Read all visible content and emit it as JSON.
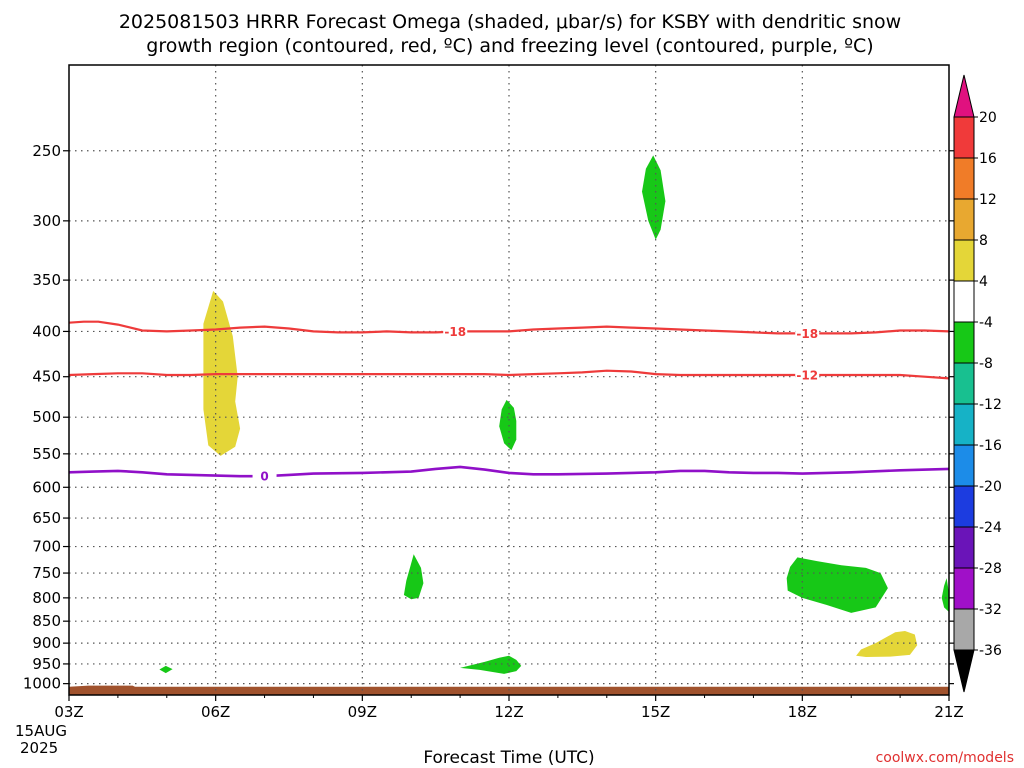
{
  "chart_data": {
    "type": "time-height cross-section",
    "title_lines": [
      "2025081503 HRRR Forecast Omega (shaded, μbar/s) for KSBY with dendritic snow",
      "growth region (contoured, red, ºC) and freezing level (contoured, purple, ºC)"
    ],
    "xlabel": "Forecast Time (UTC)",
    "x_ticks": [
      "03Z",
      "06Z",
      "09Z",
      "12Z",
      "15Z",
      "18Z",
      "21Z"
    ],
    "x_date_line1": "15AUG",
    "x_date_line2": "2025",
    "xlim_hours_utc": [
      3,
      21
    ],
    "y_ticks": [
      250,
      300,
      350,
      400,
      450,
      500,
      550,
      600,
      650,
      700,
      750,
      800,
      850,
      900,
      950,
      1000
    ],
    "ylim_hpa": [
      200,
      1030
    ],
    "y_axis": "pressure, log scale, inverted",
    "grid": "dotted",
    "colorbar": {
      "levels": [
        20,
        16,
        12,
        8,
        4,
        -4,
        -8,
        -12,
        -16,
        -20,
        -24,
        -28,
        -32,
        -36
      ],
      "colors": [
        "#e0117f",
        "#f03a3a",
        "#f07c28",
        "#e8a830",
        "#e4d638",
        "#ffffff",
        "#17c817",
        "#18c090",
        "#16b2c6",
        "#1c8ce8",
        "#1c3ce0",
        "#6a14b8",
        "#a010c8",
        "#a8a8a8",
        "#000000"
      ]
    },
    "contours": [
      {
        "label": "-18",
        "color": "#ee3b3b",
        "points": [
          [
            3,
            391
          ],
          [
            3.3,
            390
          ],
          [
            3.6,
            390
          ],
          [
            4,
            393
          ],
          [
            4.5,
            399
          ],
          [
            5,
            400
          ],
          [
            5.5,
            399
          ],
          [
            6,
            398
          ],
          [
            6.5,
            396
          ],
          [
            7,
            395
          ],
          [
            7.5,
            397
          ],
          [
            8,
            400
          ],
          [
            8.5,
            401
          ],
          [
            9,
            401
          ],
          [
            9.5,
            400
          ],
          [
            10,
            401
          ],
          [
            10.5,
            401
          ],
          [
            11,
            400
          ],
          [
            11.5,
            400
          ],
          [
            12,
            400
          ],
          [
            12.5,
            398
          ],
          [
            13,
            397
          ],
          [
            13.5,
            396
          ],
          [
            14,
            395
          ],
          [
            14.5,
            396
          ],
          [
            15,
            397
          ],
          [
            15.5,
            398
          ],
          [
            16,
            399
          ],
          [
            16.5,
            400
          ],
          [
            17,
            401
          ],
          [
            17.5,
            402
          ],
          [
            18,
            402
          ],
          [
            18.5,
            402
          ],
          [
            19,
            402
          ],
          [
            19.5,
            401
          ],
          [
            20,
            399
          ],
          [
            20.5,
            399
          ],
          [
            21,
            400
          ]
        ]
      },
      {
        "label": "-12",
        "color": "#ee3b3b",
        "points": [
          [
            3,
            448
          ],
          [
            3.5,
            447
          ],
          [
            4,
            446
          ],
          [
            4.5,
            446
          ],
          [
            5,
            448
          ],
          [
            5.5,
            448
          ],
          [
            6,
            447
          ],
          [
            6.5,
            447
          ],
          [
            7,
            447
          ],
          [
            8,
            447
          ],
          [
            9,
            447
          ],
          [
            10,
            447
          ],
          [
            11,
            447
          ],
          [
            11.5,
            447
          ],
          [
            12,
            448
          ],
          [
            12.5,
            447
          ],
          [
            13,
            446
          ],
          [
            13.5,
            445
          ],
          [
            14,
            443
          ],
          [
            14.5,
            444
          ],
          [
            15,
            447
          ],
          [
            15.5,
            448
          ],
          [
            16,
            448
          ],
          [
            17,
            448
          ],
          [
            18,
            448
          ],
          [
            19,
            448
          ],
          [
            20,
            448
          ],
          [
            20.5,
            450
          ],
          [
            21,
            452
          ]
        ]
      },
      {
        "label": "0",
        "color": "#9010c8",
        "points": [
          [
            3,
            577
          ],
          [
            3.5,
            576
          ],
          [
            4,
            575
          ],
          [
            4.5,
            577
          ],
          [
            5,
            580
          ],
          [
            5.5,
            581
          ],
          [
            6,
            582
          ],
          [
            6.5,
            583
          ],
          [
            7,
            583
          ],
          [
            7.5,
            581
          ],
          [
            8,
            579
          ],
          [
            9,
            578
          ],
          [
            10,
            576
          ],
          [
            10.5,
            572
          ],
          [
            11,
            569
          ],
          [
            11.5,
            573
          ],
          [
            12,
            578
          ],
          [
            12.5,
            580
          ],
          [
            13,
            580
          ],
          [
            14,
            579
          ],
          [
            15,
            577
          ],
          [
            15.5,
            575
          ],
          [
            16,
            575
          ],
          [
            16.5,
            577
          ],
          [
            17,
            578
          ],
          [
            17.5,
            578
          ],
          [
            18,
            579
          ],
          [
            19,
            577
          ],
          [
            20,
            574
          ],
          [
            21,
            572
          ]
        ]
      }
    ],
    "contour_label_positions": [
      {
        "text": "-18",
        "x": 10.9,
        "y": 400
      },
      {
        "text": "-18",
        "x": 18.1,
        "y": 402
      },
      {
        "text": "-12",
        "x": 18.1,
        "y": 448
      },
      {
        "text": "0",
        "x": 7.0,
        "y": 583
      }
    ],
    "shaded_regions": [
      {
        "value": "4 to 8",
        "color": "#e4d638",
        "points": [
          [
            5.75,
            392
          ],
          [
            5.95,
            360
          ],
          [
            6.15,
            370
          ],
          [
            6.35,
            405
          ],
          [
            6.45,
            450
          ],
          [
            6.4,
            480
          ],
          [
            6.5,
            515
          ],
          [
            6.4,
            540
          ],
          [
            6.1,
            553
          ],
          [
            5.85,
            538
          ],
          [
            5.75,
            490
          ],
          [
            5.75,
            440
          ]
        ]
      },
      {
        "value": "-4 to -8",
        "color": "#17c817",
        "points": [
          [
            14.95,
            253
          ],
          [
            15.1,
            263
          ],
          [
            15.2,
            285
          ],
          [
            15.1,
            307
          ],
          [
            15.0,
            315
          ],
          [
            14.85,
            300
          ],
          [
            14.72,
            278
          ],
          [
            14.8,
            262
          ]
        ]
      },
      {
        "value": "-4 to -8",
        "color": "#17c817",
        "points": [
          [
            11.95,
            478
          ],
          [
            12.1,
            488
          ],
          [
            12.15,
            505
          ],
          [
            12.15,
            530
          ],
          [
            12.05,
            545
          ],
          [
            11.9,
            535
          ],
          [
            11.8,
            512
          ],
          [
            11.85,
            490
          ]
        ]
      },
      {
        "value": "-4 to -8",
        "color": "#17c817",
        "points": [
          [
            10.05,
            714
          ],
          [
            10.2,
            740
          ],
          [
            10.25,
            770
          ],
          [
            10.15,
            800
          ],
          [
            10.0,
            803
          ],
          [
            9.85,
            794
          ],
          [
            9.9,
            765
          ],
          [
            9.98,
            738
          ]
        ]
      },
      {
        "value": "-4 to -8",
        "color": "#17c817",
        "points": [
          [
            17.9,
            720
          ],
          [
            18.3,
            727
          ],
          [
            18.8,
            735
          ],
          [
            19.3,
            740
          ],
          [
            19.6,
            750
          ],
          [
            19.75,
            780
          ],
          [
            19.5,
            820
          ],
          [
            19.0,
            832
          ],
          [
            18.5,
            815
          ],
          [
            18.0,
            800
          ],
          [
            17.7,
            785
          ],
          [
            17.68,
            760
          ],
          [
            17.75,
            738
          ]
        ]
      },
      {
        "value": "-4 to -8",
        "color": "#17c817",
        "points": [
          [
            20.95,
            760
          ],
          [
            21,
            790
          ],
          [
            21,
            830
          ],
          [
            20.9,
            820
          ],
          [
            20.85,
            800
          ],
          [
            20.9,
            775
          ]
        ]
      },
      {
        "value": "-4 to -8",
        "color": "#17c817",
        "points": [
          [
            12.0,
            930
          ],
          [
            12.15,
            940
          ],
          [
            12.25,
            955
          ],
          [
            12.15,
            968
          ],
          [
            11.9,
            975
          ],
          [
            11.4,
            965
          ],
          [
            11.0,
            960
          ],
          [
            11.5,
            945
          ],
          [
            11.8,
            935
          ]
        ]
      },
      {
        "value": "-4 to -8",
        "color": "#17c817",
        "points": [
          [
            4.98,
            955
          ],
          [
            5.12,
            963
          ],
          [
            4.98,
            973
          ],
          [
            4.85,
            964
          ]
        ]
      },
      {
        "value": "4 to 8",
        "color": "#e4d638",
        "points": [
          [
            19.5,
            900
          ],
          [
            19.9,
            875
          ],
          [
            20.1,
            872
          ],
          [
            20.3,
            880
          ],
          [
            20.35,
            905
          ],
          [
            20.2,
            928
          ],
          [
            19.8,
            932
          ],
          [
            19.3,
            933
          ],
          [
            19.1,
            930
          ],
          [
            19.2,
            915
          ]
        ]
      }
    ],
    "surface_fill": {
      "color": "#a0522d",
      "top_hpa": 1008,
      "top_hpa_left": 1005
    }
  },
  "credit": "coolwx.com/models"
}
